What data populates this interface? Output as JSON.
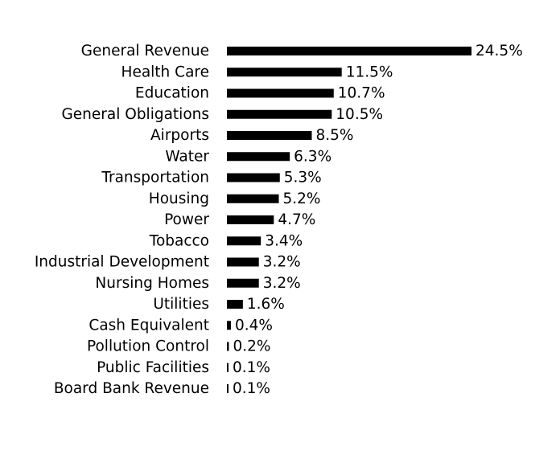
{
  "chart_data": {
    "type": "bar",
    "orientation": "horizontal",
    "categories": [
      "General Revenue",
      "Health Care",
      "Education",
      "General Obligations",
      "Airports",
      "Water",
      "Transportation",
      "Housing",
      "Power",
      "Tobacco",
      "Industrial Development",
      "Nursing Homes",
      "Utilities",
      "Cash Equivalent",
      "Pollution Control",
      "Public Facilities",
      "Board Bank Revenue"
    ],
    "values": [
      24.5,
      11.5,
      10.7,
      10.5,
      8.5,
      6.3,
      5.3,
      5.2,
      4.7,
      3.4,
      3.2,
      3.2,
      1.6,
      0.4,
      0.2,
      0.1,
      0.1
    ],
    "value_labels": [
      "24.5%",
      "11.5%",
      "10.7%",
      "10.5%",
      "8.5%",
      "6.3%",
      "5.3%",
      "5.2%",
      "4.7%",
      "3.4%",
      "3.2%",
      "3.2%",
      "1.6%",
      "0.4%",
      "0.2%",
      "0.1%",
      "0.1%"
    ],
    "title": "",
    "xlabel": "",
    "ylabel": "",
    "xlim": [
      0,
      24.5
    ],
    "grid": false,
    "bar_color": "#000000"
  }
}
